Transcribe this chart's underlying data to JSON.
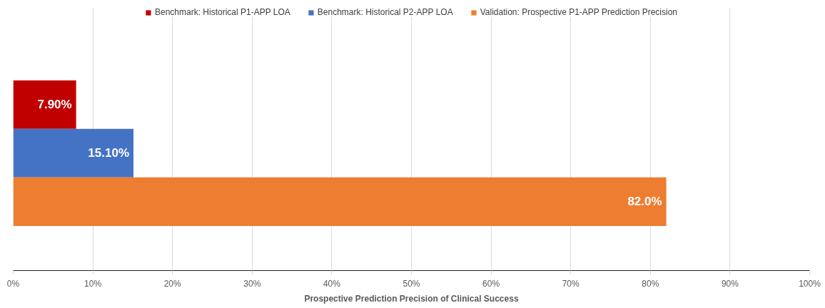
{
  "chart_data": {
    "type": "bar",
    "orientation": "horizontal",
    "categories": [
      null
    ],
    "series": [
      {
        "name": "Benchmark: Historical P1-APP LOA",
        "color": "#c00000",
        "values": [
          7.9
        ],
        "value_labels": [
          "7.90%"
        ]
      },
      {
        "name": "Benchmark: Historical P2-APP LOA",
        "color": "#4472c4",
        "values": [
          15.1
        ],
        "value_labels": [
          "15.10%"
        ]
      },
      {
        "name": "Validation: Prospective P1-APP Prediction Precision",
        "color": "#ed7d31",
        "values": [
          82.0
        ],
        "value_labels": [
          "82.0%"
        ]
      }
    ],
    "xlim": [
      0,
      100
    ],
    "xticks": [
      {
        "value": 0,
        "label": "0%"
      },
      {
        "value": 10,
        "label": "10%"
      },
      {
        "value": 20,
        "label": "20%"
      },
      {
        "value": 30,
        "label": "30%"
      },
      {
        "value": 40,
        "label": "40%"
      },
      {
        "value": 50,
        "label": "50%"
      },
      {
        "value": 60,
        "label": "60%"
      },
      {
        "value": 70,
        "label": "70%"
      },
      {
        "value": 80,
        "label": "80%"
      },
      {
        "value": 90,
        "label": "90%"
      },
      {
        "value": 100,
        "label": "100%"
      }
    ],
    "xlabel": "Prospective Prediction Precision of Clinical Success",
    "grid": "x",
    "legend": "top",
    "tick_labels": "x"
  }
}
